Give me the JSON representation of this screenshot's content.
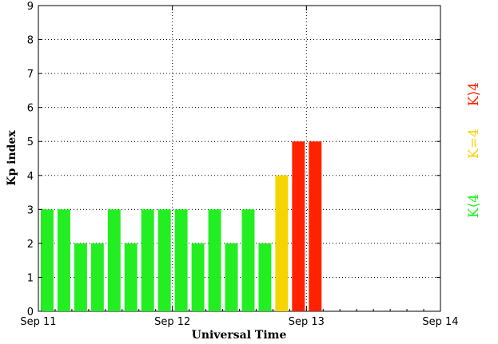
{
  "chart_data": {
    "type": "bar",
    "title": "",
    "xlabel": "Universal Time",
    "ylabel": "Kp index",
    "ylim": [
      0,
      9
    ],
    "yticks": [
      0,
      1,
      2,
      3,
      4,
      5,
      6,
      7,
      8,
      9
    ],
    "xticks": [
      "Sep 11",
      "Sep 12",
      "Sep 13",
      "Sep 14"
    ],
    "grid": true,
    "values": [
      3,
      3,
      2,
      2,
      3,
      2,
      3,
      3,
      3,
      2,
      3,
      2,
      3,
      2,
      4,
      5,
      5
    ],
    "legend": [
      {
        "label": "K⟨4",
        "color": "#22ee22"
      },
      {
        "label": "K=4",
        "color": "#f5d400"
      },
      {
        "label": "K⟩4",
        "color": "#ff2200"
      }
    ],
    "colors": {
      "low": "#22ee22",
      "storm_threshold": "#f5d400",
      "storm": "#ff2200"
    }
  }
}
